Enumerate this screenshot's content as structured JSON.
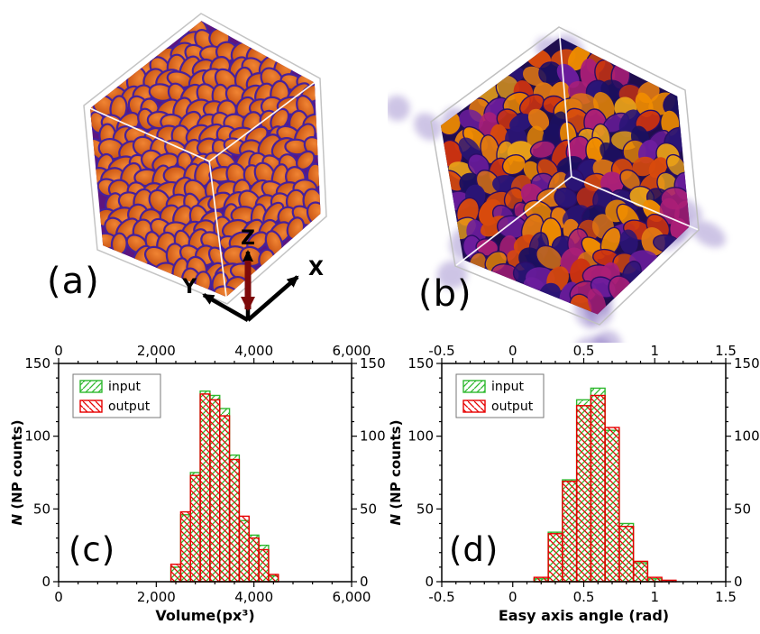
{
  "panels": {
    "a": {
      "label": "(a)",
      "type": "3d-particle-render",
      "axis_triad": {
        "x": "X",
        "y": "Y",
        "z": "Z"
      },
      "particle_gradient": [
        "#f08433",
        "#c14a0c"
      ],
      "particle_stroke_color": "#46219c",
      "background_fill": "#5c1580",
      "box_edge_color": "#c4c4c4",
      "inner_edge_color": "#ffffff",
      "triad_arrow_color": "#000000",
      "triad_z_arrow_color": "#7d0a0a"
    },
    "b": {
      "label": "(b)",
      "type": "3d-particle-render",
      "particle_fill_colors": [
        "#e07812",
        "#f08c00",
        "#e8a018",
        "#cc3310",
        "#ab1f77",
        "#6d1d9e",
        "#2b1577",
        "#1b1060",
        "#d84a0c"
      ],
      "particle_stroke_color": "#2a0d66",
      "background_fill": "#1f0d4e",
      "fuzzy_color": "#6a4fb2",
      "box_edge_color": "#c0c0c0",
      "inner_edge_color": "#ffffff"
    },
    "c": {
      "label": "(c)"
    },
    "d": {
      "label": "(d)"
    }
  },
  "chart_data": [
    {
      "type": "bar",
      "panel": "c",
      "xlabel": "Volume(px³)",
      "ylabel_italic": "N",
      "ylabel_rest": " (NP counts)",
      "xlim": [
        0,
        6000
      ],
      "ylim": [
        0,
        150
      ],
      "xticks": [
        0,
        2000,
        4000,
        6000
      ],
      "xtick_labels": [
        "0",
        "2,000",
        "4,000",
        "6,000"
      ],
      "yticks": [
        0,
        50,
        100,
        150
      ],
      "ytick_labels": [
        "0",
        "50",
        "100",
        "150"
      ],
      "minor_x_step": 400,
      "minor_y_step": 10,
      "grid": false,
      "legend_position": "top-left",
      "bin_width": 200,
      "bin_centers": [
        2400,
        2600,
        2800,
        3000,
        3200,
        3400,
        3600,
        3800,
        4000,
        4200,
        4400
      ],
      "series": [
        {
          "name": "input",
          "color": "#2eb82e",
          "hatch_direction": "forward",
          "values": [
            10,
            46,
            75,
            131,
            128,
            119,
            87,
            42,
            32,
            25,
            4
          ]
        },
        {
          "name": "output",
          "color": "#e60000",
          "hatch_direction": "backward",
          "values": [
            12,
            48,
            73,
            129,
            125,
            114,
            84,
            45,
            30,
            22,
            5
          ]
        }
      ]
    },
    {
      "type": "bar",
      "panel": "d",
      "xlabel": "Easy axis angle (rad)",
      "ylabel_italic": "N",
      "ylabel_rest": " (NP counts)",
      "xlim": [
        -0.5,
        1.5
      ],
      "ylim": [
        0,
        150
      ],
      "xticks": [
        -0.5,
        0,
        0.5,
        1,
        1.5
      ],
      "xtick_labels": [
        "-0.5",
        "0",
        "0.5",
        "1",
        "1.5"
      ],
      "yticks": [
        0,
        50,
        100,
        150
      ],
      "ytick_labels": [
        "0",
        "50",
        "100",
        "150"
      ],
      "minor_x_step": 0.1,
      "minor_y_step": 10,
      "grid": false,
      "legend_position": "top-left",
      "bin_width": 0.1,
      "bin_centers": [
        0.2,
        0.3,
        0.4,
        0.5,
        0.6,
        0.7,
        0.8,
        0.9,
        1.0,
        1.1
      ],
      "series": [
        {
          "name": "input",
          "color": "#2eb82e",
          "hatch_direction": "forward",
          "values": [
            2,
            34,
            70,
            125,
            133,
            104,
            40,
            13,
            2,
            0
          ]
        },
        {
          "name": "output",
          "color": "#e60000",
          "hatch_direction": "backward",
          "values": [
            3,
            33,
            69,
            121,
            128,
            106,
            38,
            14,
            3,
            1
          ]
        }
      ]
    }
  ]
}
